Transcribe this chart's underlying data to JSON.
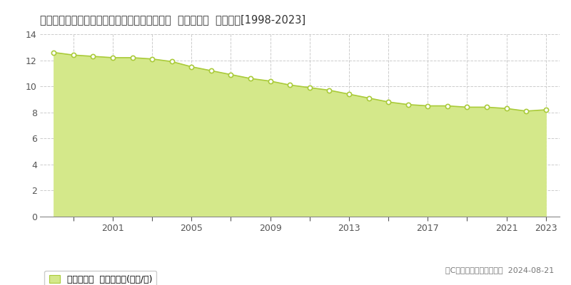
{
  "title": "福島県石川郡石川町大字双里字谷津前３９番３  基準地価格  地価推移[1998-2023]",
  "years": [
    1998,
    1999,
    2000,
    2001,
    2002,
    2003,
    2004,
    2005,
    2006,
    2007,
    2008,
    2009,
    2010,
    2011,
    2012,
    2013,
    2014,
    2015,
    2016,
    2017,
    2018,
    2019,
    2020,
    2021,
    2022,
    2023
  ],
  "values": [
    12.6,
    12.4,
    12.3,
    12.2,
    12.2,
    12.1,
    11.9,
    11.5,
    11.2,
    10.9,
    10.6,
    10.4,
    10.1,
    9.9,
    9.7,
    9.4,
    9.1,
    8.8,
    8.6,
    8.5,
    8.5,
    8.4,
    8.4,
    8.3,
    8.1,
    8.2
  ],
  "line_color": "#aacb3a",
  "fill_color": "#d4e88a",
  "marker_color": "#ffffff",
  "marker_edge_color": "#aacb3a",
  "background_color": "#ffffff",
  "plot_bg_color": "#ffffff",
  "grid_color": "#cccccc",
  "ylim": [
    0,
    14
  ],
  "yticks": [
    0,
    2,
    4,
    6,
    8,
    10,
    12,
    14
  ],
  "legend_label": "基準地価格  平均坪単価(万円/坪)",
  "copyright_text": "（C）土地価格ドットコム  2024-08-21",
  "title_fontsize": 10.5,
  "axis_fontsize": 9,
  "legend_fontsize": 9,
  "copyright_fontsize": 8
}
